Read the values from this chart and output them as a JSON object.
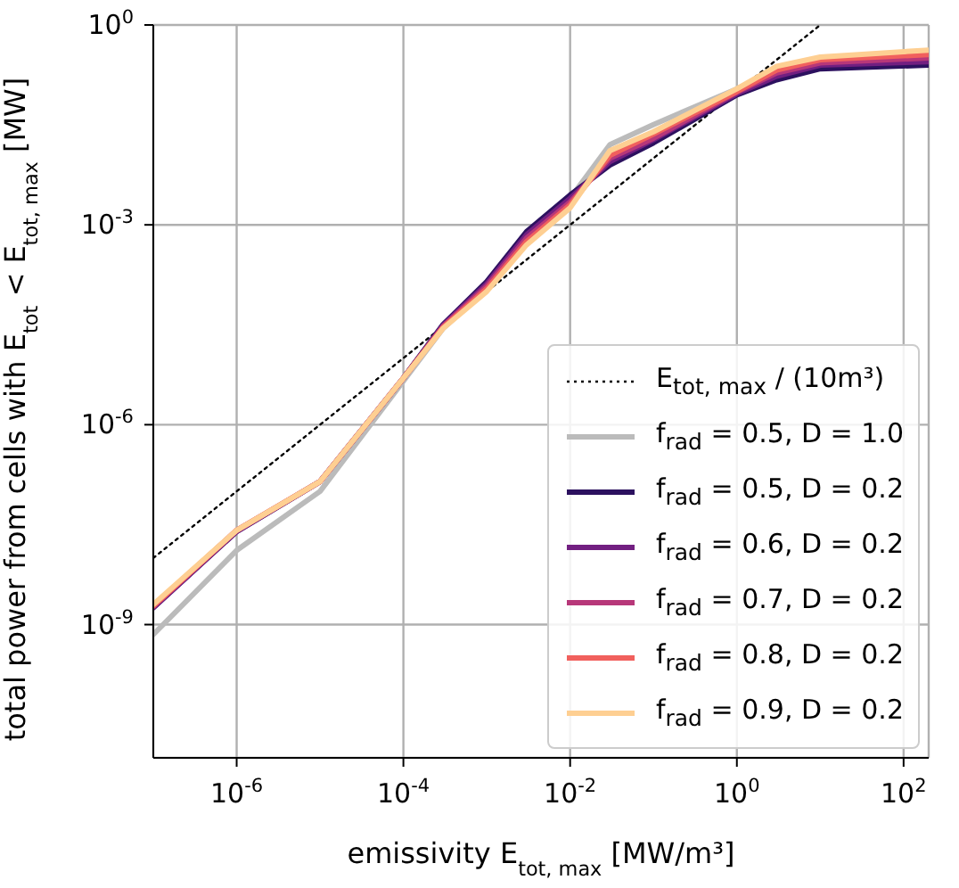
{
  "chart_data": {
    "type": "line",
    "xlabel": "emissivity E$_{tot, max}$ [MW/m³]",
    "ylabel": "total power from cells with E$_{tot}$ < E$_{tot, max}$ [MW]",
    "log": "xy",
    "grid": true,
    "legend": "bottom right",
    "line_style": "solid",
    "marker": "none",
    "x": [
      1e-07,
      1e-06,
      1e-05,
      0.0001,
      0.0003,
      0.001,
      0.003,
      0.01,
      0.03,
      0.1,
      1,
      3,
      10,
      200
    ],
    "xlim": [
      1e-07,
      200
    ],
    "xticks": [
      {
        "value": 1e-06,
        "label": "10$^{-6}$"
      },
      {
        "value": 0.0001,
        "label": "10$^{-4}$"
      },
      {
        "value": 0.01,
        "label": "10$^{-2}$"
      },
      {
        "value": 1,
        "label": "10$^{0}$"
      },
      {
        "value": 100,
        "label": "10$^{2}$"
      }
    ],
    "ylim": [
      1e-11,
      1
    ],
    "yticks": [
      {
        "value": 1e-09,
        "label": "10$^{-9}$"
      },
      {
        "value": 1e-06,
        "label": "10$^{-6}$"
      },
      {
        "value": 0.001,
        "label": "10$^{-3}$"
      },
      {
        "value": 1,
        "label": "10$^{0}$"
      }
    ],
    "series": [
      {
        "name": "E$_{tot, max}$ / (10m³)",
        "type": "line",
        "line_style": "dotted",
        "color": "#000000",
        "x": [
          1e-07,
          10
        ],
        "values": [
          1e-08,
          1
        ]
      },
      {
        "name": "f$_{rad}$ = 0.5, D = 1.0",
        "color": "#bbbbbb",
        "values": [
          7.1e-10,
          1.3e-08,
          1e-07,
          4.5e-06,
          2.8e-05,
          0.00011,
          0.00063,
          0.0025,
          0.016,
          0.032,
          0.11,
          0.2,
          0.28,
          0.32
        ]
      },
      {
        "name": "f$_{rad}$ = 0.5, D = 0.2",
        "color": "#2c115f",
        "values": [
          1.8e-09,
          2.5e-08,
          1.4e-07,
          5e-06,
          3.2e-05,
          0.00014,
          0.00079,
          0.0028,
          0.0079,
          0.017,
          0.089,
          0.15,
          0.22,
          0.25
        ]
      },
      {
        "name": "f$_{rad}$ = 0.6, D = 0.2",
        "color": "#721f81",
        "values": [
          1.8e-09,
          2.5e-08,
          1.4e-07,
          5e-06,
          3.1e-05,
          0.00013,
          0.00071,
          0.0025,
          0.0089,
          0.019,
          0.093,
          0.17,
          0.25,
          0.28
        ]
      },
      {
        "name": "f$_{rad}$ = 0.7, D = 0.2",
        "color": "#b73779",
        "values": [
          1.9e-09,
          2.6e-08,
          1.4e-07,
          5e-06,
          3e-05,
          0.00012,
          0.00063,
          0.0022,
          0.01,
          0.02,
          0.098,
          0.19,
          0.27,
          0.32
        ]
      },
      {
        "name": "f$_{rad}$ = 0.8, D = 0.2",
        "color": "#f1605d",
        "values": [
          1.9e-09,
          2.6e-08,
          1.4e-07,
          5e-06,
          2.9e-05,
          0.00011,
          0.00056,
          0.002,
          0.011,
          0.023,
          0.1,
          0.21,
          0.3,
          0.36
        ]
      },
      {
        "name": "f$_{rad}$ = 0.9, D = 0.2",
        "color": "#fecf92",
        "values": [
          2e-09,
          2.6e-08,
          1.4e-07,
          5e-06,
          2.8e-05,
          0.0001,
          0.0005,
          0.0018,
          0.013,
          0.025,
          0.11,
          0.24,
          0.33,
          0.42
        ]
      }
    ]
  }
}
